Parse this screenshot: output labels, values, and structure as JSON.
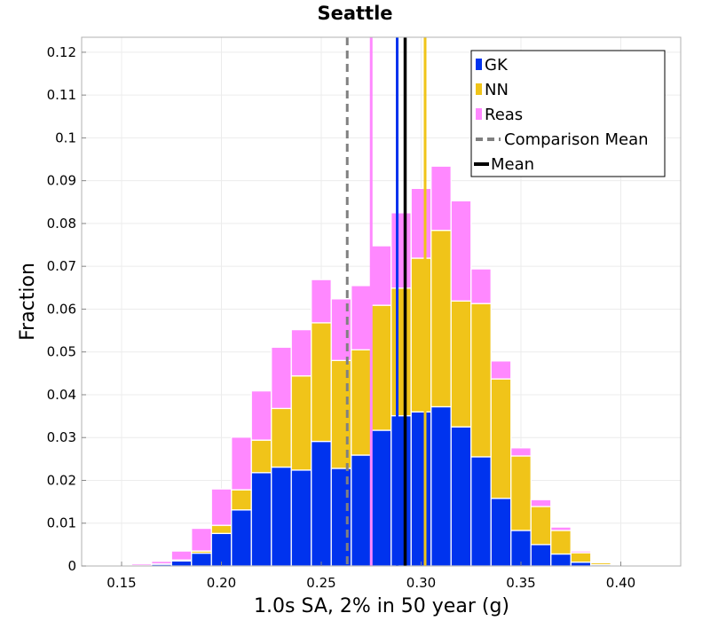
{
  "chart_data": {
    "type": "bar",
    "subtype": "stacked-histogram",
    "title": "Seattle",
    "xlabel": "1.0s SA, 2% in 50 year (g)",
    "ylabel": "Fraction",
    "xlim": [
      0.13,
      0.43
    ],
    "ylim": [
      0,
      0.1235
    ],
    "bin_width": 0.01,
    "grid": true,
    "legend_position": "top-right",
    "xticks": [
      {
        "value": 0.15,
        "label": "0.15"
      },
      {
        "value": 0.2,
        "label": "0.20"
      },
      {
        "value": 0.25,
        "label": "0.25"
      },
      {
        "value": 0.3,
        "label": "0.30"
      },
      {
        "value": 0.35,
        "label": "0.35"
      },
      {
        "value": 0.4,
        "label": "0.40"
      }
    ],
    "yticks": [
      {
        "value": 0,
        "label": "0"
      },
      {
        "value": 0.01,
        "label": "0.01"
      },
      {
        "value": 0.02,
        "label": "0.02"
      },
      {
        "value": 0.03,
        "label": "0.03"
      },
      {
        "value": 0.04,
        "label": "0.04"
      },
      {
        "value": 0.05,
        "label": "0.05"
      },
      {
        "value": 0.06,
        "label": "0.06"
      },
      {
        "value": 0.07,
        "label": "0.07"
      },
      {
        "value": 0.08,
        "label": "0.08"
      },
      {
        "value": 0.09,
        "label": "0.09"
      },
      {
        "value": 0.1,
        "label": "0.1"
      },
      {
        "value": 0.11,
        "label": "0.11"
      },
      {
        "value": 0.12,
        "label": "0.12"
      }
    ],
    "bin_centers": [
      0.14,
      0.15,
      0.16,
      0.17,
      0.18,
      0.19,
      0.2,
      0.21,
      0.22,
      0.23,
      0.24,
      0.25,
      0.26,
      0.27,
      0.28,
      0.29,
      0.3,
      0.31,
      0.32,
      0.33,
      0.34,
      0.35,
      0.36,
      0.37,
      0.38,
      0.39,
      0.4,
      0.41,
      0.42
    ],
    "series": [
      {
        "name": "GK",
        "color": "#0033ee",
        "values": [
          0,
          0,
          0.0001,
          0.0004,
          0.0012,
          0.003,
          0.0076,
          0.0131,
          0.0218,
          0.0231,
          0.0224,
          0.0291,
          0.0228,
          0.0259,
          0.0317,
          0.0351,
          0.036,
          0.0372,
          0.0325,
          0.0255,
          0.0158,
          0.0083,
          0.005,
          0.0028,
          0.0009,
          0.0003,
          0.0001,
          0,
          0
        ]
      },
      {
        "name": "NN",
        "color": "#f0c419",
        "values": [
          0,
          0,
          0,
          0.0001,
          0.0002,
          0.0005,
          0.0019,
          0.0047,
          0.0076,
          0.0137,
          0.022,
          0.0277,
          0.0252,
          0.0246,
          0.0292,
          0.0298,
          0.0359,
          0.0412,
          0.0294,
          0.0358,
          0.0279,
          0.0174,
          0.0089,
          0.0055,
          0.0022,
          0.0005,
          0.0001,
          0.0001,
          0
        ]
      },
      {
        "name": "Reas",
        "color": "#ff88ff",
        "values": [
          0,
          0.0001,
          0.0004,
          0.0006,
          0.0021,
          0.0053,
          0.0085,
          0.0123,
          0.0115,
          0.0143,
          0.0108,
          0.0101,
          0.0144,
          0.015,
          0.0139,
          0.0176,
          0.0163,
          0.015,
          0.0234,
          0.0081,
          0.0042,
          0.0019,
          0.0016,
          0.0008,
          0.0004,
          0.0002,
          0.0001,
          0,
          0
        ]
      }
    ],
    "vertical_lines": [
      {
        "name": "Comparison Mean",
        "x": 0.263,
        "color": "#808080",
        "style": "dashed"
      },
      {
        "name": "Reas mean",
        "x": 0.275,
        "color": "#ff88ff",
        "style": "solid"
      },
      {
        "name": "GK mean",
        "x": 0.288,
        "color": "#0033ee",
        "style": "solid"
      },
      {
        "name": "Mean",
        "x": 0.292,
        "color": "#000000",
        "style": "solid"
      },
      {
        "name": "NN mean",
        "x": 0.302,
        "color": "#f0c419",
        "style": "solid"
      }
    ],
    "legend": [
      {
        "label": "GK",
        "kind": "patch",
        "color": "#0033ee"
      },
      {
        "label": "NN",
        "kind": "patch",
        "color": "#f0c419"
      },
      {
        "label": "Reas",
        "kind": "patch",
        "color": "#ff88ff"
      },
      {
        "label": "Comparison Mean",
        "kind": "dashed",
        "color": "#808080"
      },
      {
        "label": "Mean",
        "kind": "solid",
        "color": "#000000"
      }
    ]
  }
}
